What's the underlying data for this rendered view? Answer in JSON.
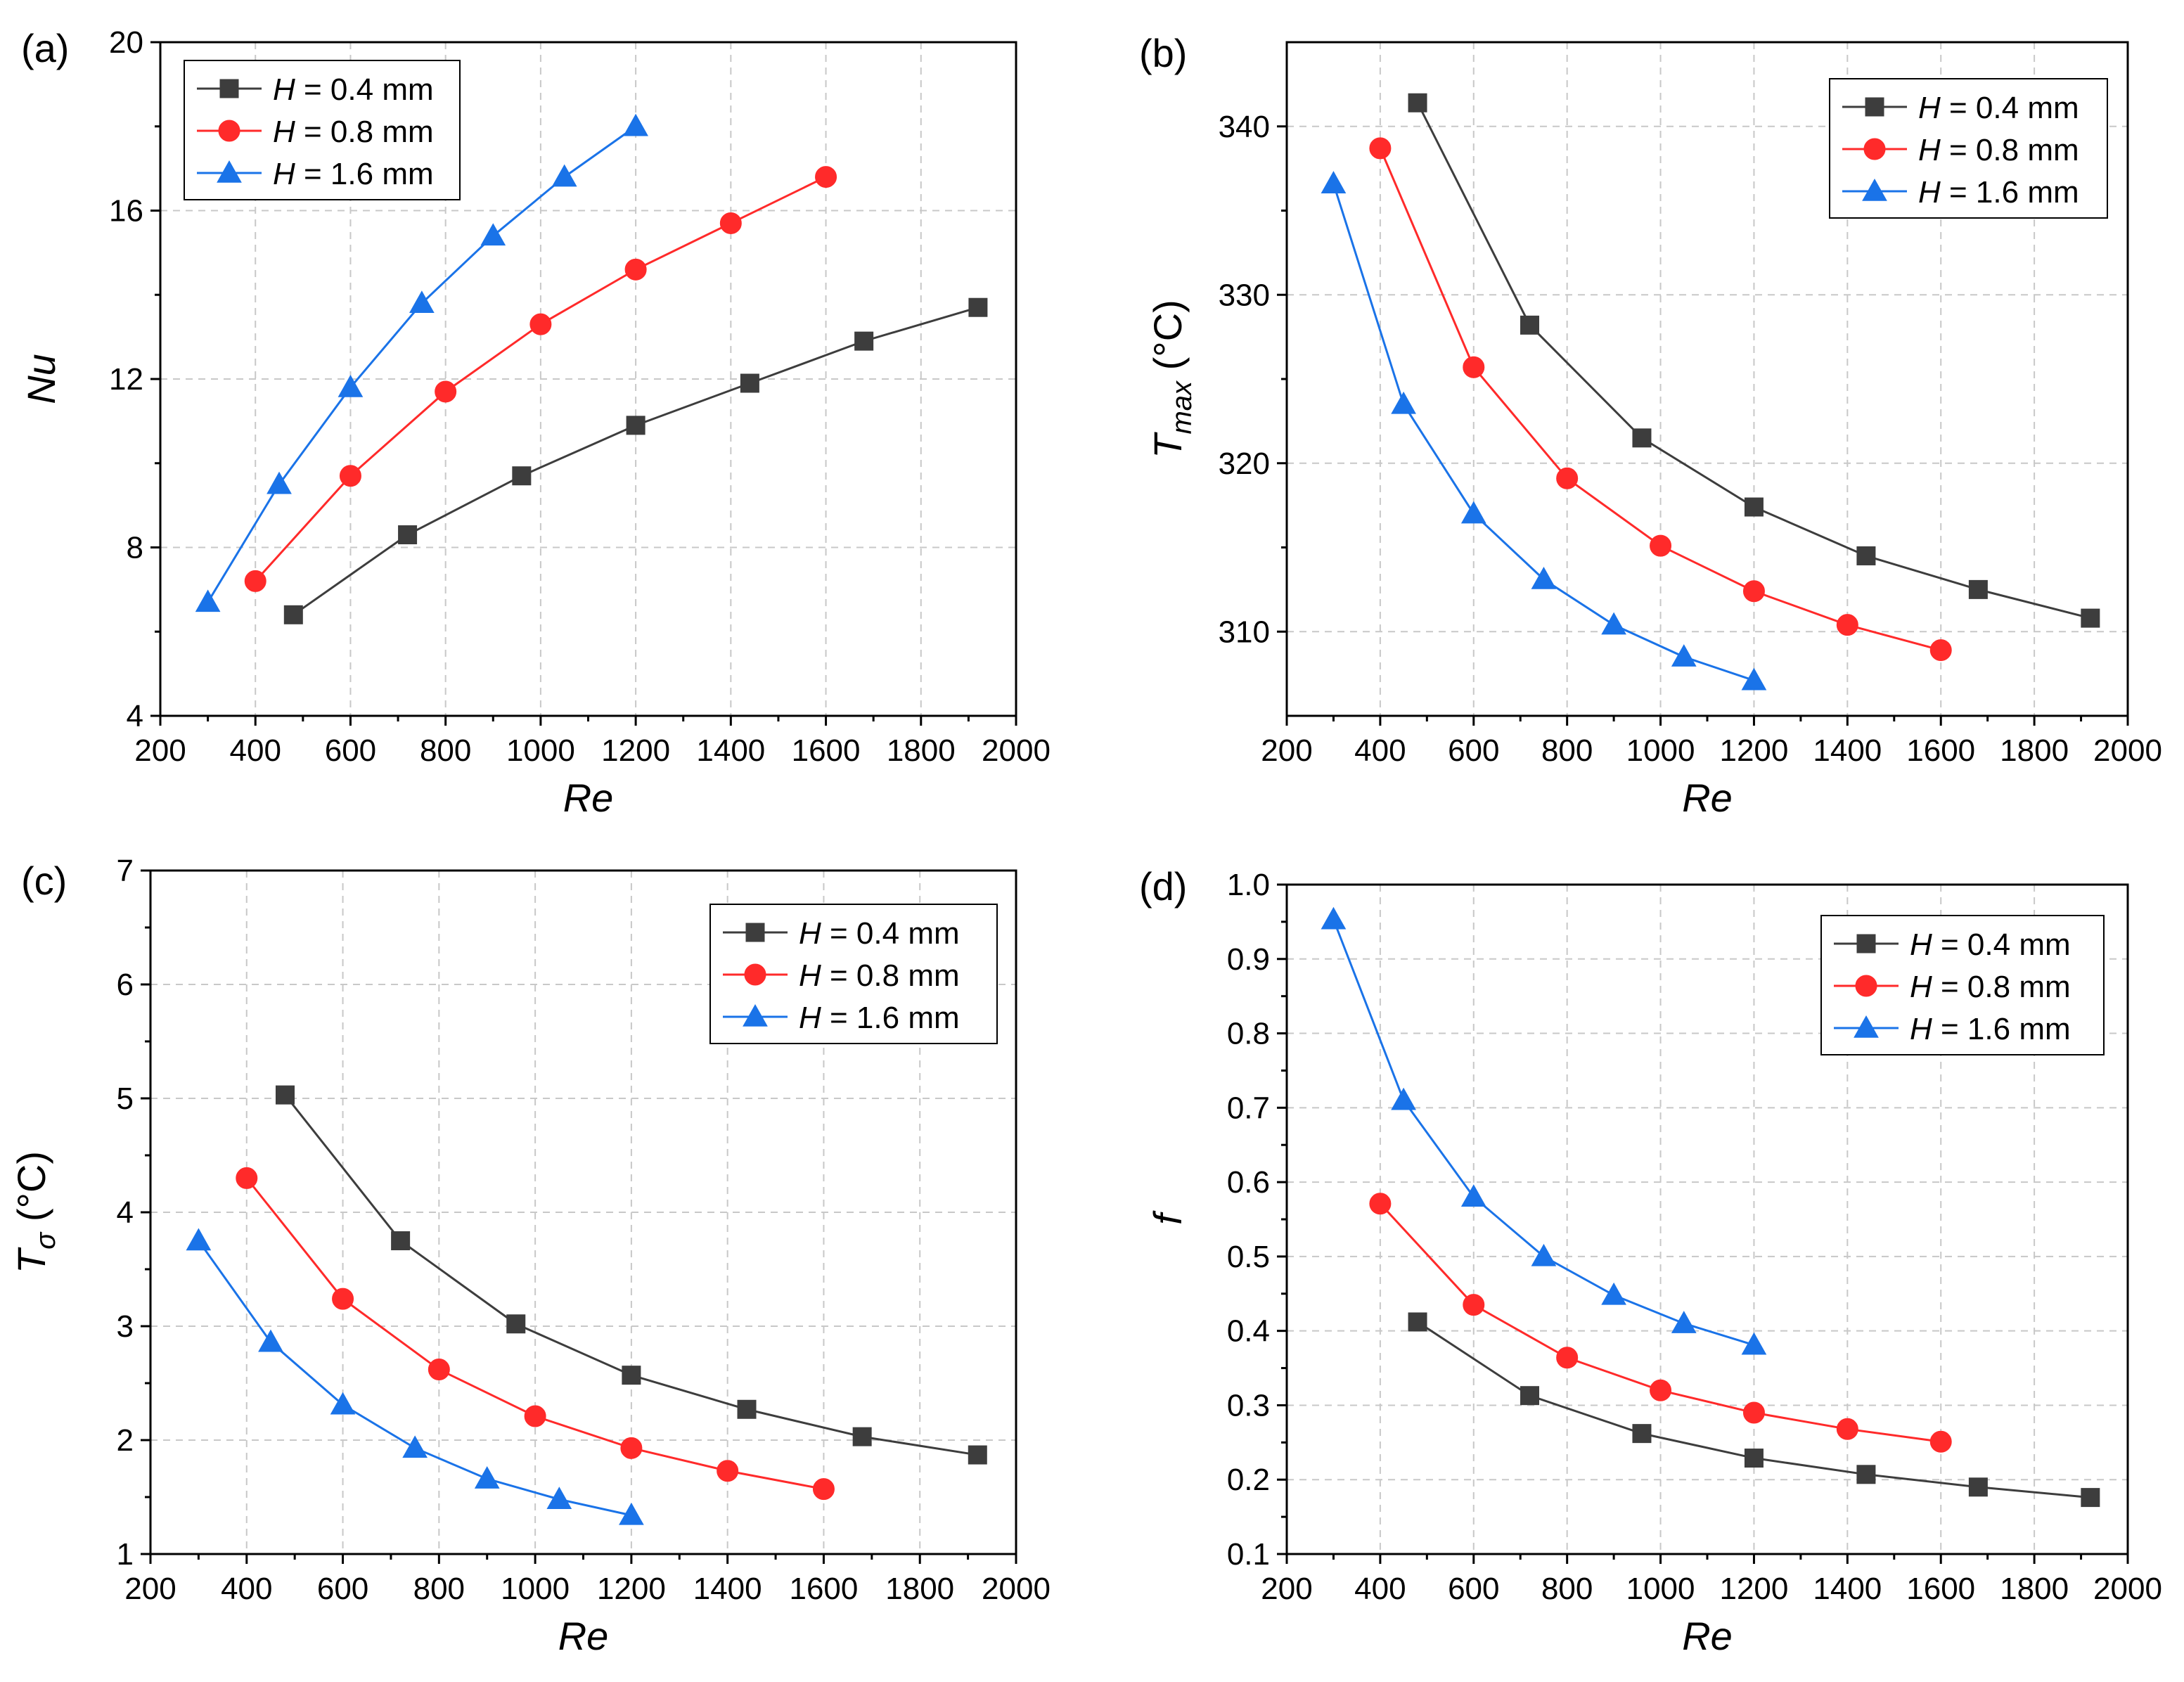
{
  "colors": {
    "H_0.4": "#3d3d3d",
    "H_0.8": "#ff2a2a",
    "H_1.6": "#1a73e8"
  },
  "chart_data": [
    {
      "panel_label": "(a)",
      "type": "line",
      "xlabel": "Re",
      "ylabel": {
        "main": "Nu"
      },
      "xlim": [
        200,
        2000
      ],
      "ylim": [
        4,
        20
      ],
      "xticks": [
        200,
        400,
        600,
        800,
        1000,
        1200,
        1400,
        1600,
        1800,
        2000
      ],
      "yticks": [
        4,
        8,
        12,
        16,
        20
      ],
      "grid": true,
      "legend_position": "top-left",
      "series": [
        {
          "name": "H = 0.4 mm",
          "legend_var": "H",
          "legend_rest": " = 0.4 mm",
          "marker": "square",
          "color_key": "H_0.4",
          "x": [
            480,
            720,
            960,
            1200,
            1440,
            1680,
            1920
          ],
          "y": [
            6.4,
            8.3,
            9.7,
            10.9,
            11.9,
            12.9,
            13.7
          ]
        },
        {
          "name": "H = 0.8 mm",
          "legend_var": "H",
          "legend_rest": " = 0.8 mm",
          "marker": "circle",
          "color_key": "H_0.8",
          "x": [
            400,
            600,
            800,
            1000,
            1200,
            1400,
            1600
          ],
          "y": [
            7.2,
            9.7,
            11.7,
            13.3,
            14.6,
            15.7,
            16.8
          ]
        },
        {
          "name": "H = 1.6 mm",
          "legend_var": "H",
          "legend_rest": " = 1.6 mm",
          "marker": "triangle",
          "color_key": "H_1.6",
          "x": [
            300,
            450,
            600,
            750,
            900,
            1050,
            1200
          ],
          "y": [
            6.7,
            9.5,
            11.8,
            13.8,
            15.4,
            16.8,
            18.0
          ]
        }
      ]
    },
    {
      "panel_label": "(b)",
      "type": "line",
      "xlabel": "Re",
      "ylabel": {
        "main": "T",
        "sub": "max",
        "rest": " (°C)"
      },
      "xlim": [
        200,
        2000
      ],
      "ylim": [
        305,
        345
      ],
      "xticks": [
        200,
        400,
        600,
        800,
        1000,
        1200,
        1400,
        1600,
        1800,
        2000
      ],
      "yticks": [
        310,
        320,
        330,
        340
      ],
      "grid": true,
      "legend_position": "top-right",
      "series": [
        {
          "name": "H = 0.4 mm",
          "legend_var": "H",
          "legend_rest": " = 0.4 mm",
          "marker": "square",
          "color_key": "H_0.4",
          "x": [
            480,
            720,
            960,
            1200,
            1440,
            1680,
            1920
          ],
          "y": [
            341.4,
            328.2,
            321.5,
            317.4,
            314.5,
            312.5,
            310.8
          ]
        },
        {
          "name": "H = 0.8 mm",
          "legend_var": "H",
          "legend_rest": " = 0.8 mm",
          "marker": "circle",
          "color_key": "H_0.8",
          "x": [
            400,
            600,
            800,
            1000,
            1200,
            1400,
            1600
          ],
          "y": [
            338.7,
            325.7,
            319.1,
            315.1,
            312.4,
            310.4,
            308.9
          ]
        },
        {
          "name": "H = 1.6 mm",
          "legend_var": "H",
          "legend_rest": " = 1.6 mm",
          "marker": "triangle",
          "color_key": "H_1.6",
          "x": [
            300,
            450,
            600,
            750,
            900,
            1050,
            1200
          ],
          "y": [
            336.6,
            323.5,
            317.0,
            313.1,
            310.4,
            308.5,
            307.1
          ]
        }
      ]
    },
    {
      "panel_label": "(c)",
      "type": "line",
      "xlabel": "Re",
      "ylabel": {
        "main": "T",
        "sub": "σ",
        "rest": " (°C)"
      },
      "xlim": [
        200,
        2000
      ],
      "ylim": [
        1,
        7
      ],
      "xticks": [
        200,
        400,
        600,
        800,
        1000,
        1200,
        1400,
        1600,
        1800,
        2000
      ],
      "yticks": [
        1,
        2,
        3,
        4,
        5,
        6,
        7
      ],
      "grid": true,
      "legend_position": "top-right",
      "series": [
        {
          "name": "H = 0.4 mm",
          "legend_var": "H",
          "legend_rest": " = 0.4 mm",
          "marker": "square",
          "color_key": "H_0.4",
          "x": [
            480,
            720,
            960,
            1200,
            1440,
            1680,
            1920
          ],
          "y": [
            5.03,
            3.75,
            3.02,
            2.57,
            2.27,
            2.03,
            1.87
          ]
        },
        {
          "name": "H = 0.8 mm",
          "legend_var": "H",
          "legend_rest": " = 0.8 mm",
          "marker": "circle",
          "color_key": "H_0.8",
          "x": [
            400,
            600,
            800,
            1000,
            1200,
            1400,
            1600
          ],
          "y": [
            4.3,
            3.24,
            2.62,
            2.21,
            1.93,
            1.73,
            1.57
          ]
        },
        {
          "name": "H = 1.6 mm",
          "legend_var": "H",
          "legend_rest": " = 1.6 mm",
          "marker": "triangle",
          "color_key": "H_1.6",
          "x": [
            300,
            450,
            600,
            750,
            900,
            1050,
            1200
          ],
          "y": [
            3.75,
            2.86,
            2.31,
            1.93,
            1.66,
            1.48,
            1.34
          ]
        }
      ]
    },
    {
      "panel_label": "(d)",
      "type": "line",
      "xlabel": "Re",
      "ylabel": {
        "main": "f"
      },
      "xlim": [
        200,
        2000
      ],
      "ylim": [
        0.1,
        1.0
      ],
      "xticks": [
        200,
        400,
        600,
        800,
        1000,
        1200,
        1400,
        1600,
        1800,
        2000
      ],
      "yticks": [
        0.1,
        0.2,
        0.3,
        0.4,
        0.5,
        0.6,
        0.7,
        0.8,
        0.9,
        1.0
      ],
      "yticks_text": [
        "0.1",
        "0.2",
        "0.3",
        "0.4",
        "0.5",
        "0.6",
        "0.7",
        "0.8",
        "0.9",
        "1.0"
      ],
      "grid": true,
      "legend_position": "top-right",
      "series": [
        {
          "name": "H = 0.4 mm",
          "legend_var": "H",
          "legend_rest": " = 0.4 mm",
          "marker": "square",
          "color_key": "H_0.4",
          "x": [
            480,
            720,
            960,
            1200,
            1440,
            1680,
            1920
          ],
          "y": [
            0.412,
            0.313,
            0.262,
            0.229,
            0.207,
            0.19,
            0.176
          ]
        },
        {
          "name": "H = 0.8 mm",
          "legend_var": "H",
          "legend_rest": " = 0.8 mm",
          "marker": "circle",
          "color_key": "H_0.8",
          "x": [
            400,
            600,
            800,
            1000,
            1200,
            1400,
            1600
          ],
          "y": [
            0.571,
            0.435,
            0.364,
            0.32,
            0.29,
            0.268,
            0.251
          ]
        },
        {
          "name": "H = 1.6 mm",
          "legend_var": "H",
          "legend_rest": " = 1.6 mm",
          "marker": "triangle",
          "color_key": "H_1.6",
          "x": [
            300,
            450,
            600,
            750,
            900,
            1050,
            1200
          ],
          "y": [
            0.953,
            0.71,
            0.58,
            0.5,
            0.448,
            0.41,
            0.381
          ]
        }
      ]
    }
  ]
}
